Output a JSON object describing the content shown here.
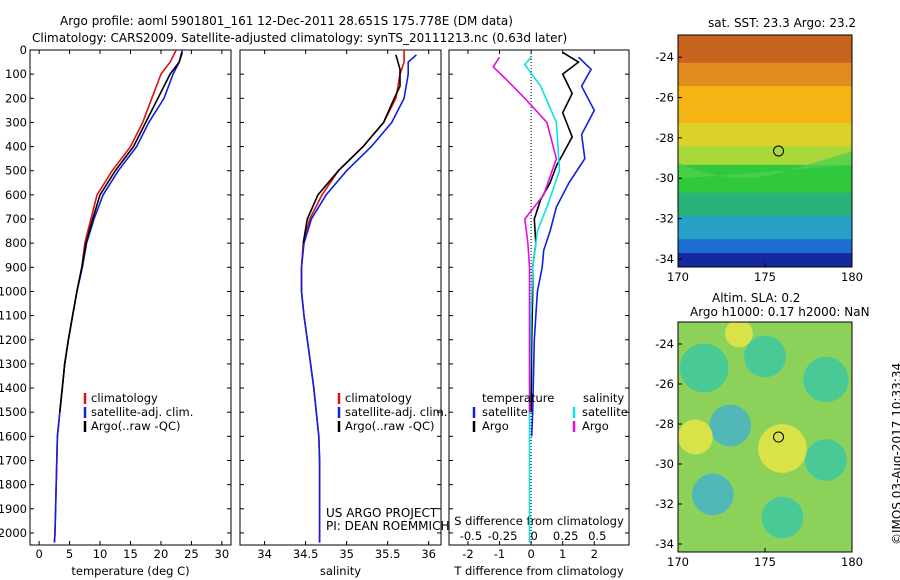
{
  "header": {
    "title": "Argo profile: aoml 5901801_161 12-Dec-2011 28.651S 175.778E (DM data)",
    "subtitle": "Climatology: CARS2009. Satellite-adjusted climatology: synTS_20111213.nc (0.63d later)"
  },
  "colors": {
    "climatology": "#e01010",
    "satellite": "#1020e0",
    "argo": "#000000",
    "cyan": "#10e0e0",
    "magenta": "#e010e0"
  },
  "legend_main": {
    "climatology": "climatology",
    "satellite": "satellite-adj. clim.",
    "argo": "Argo(..raw -QC)"
  },
  "legend_diff": {
    "temp_head": "temperature",
    "sal_head": "salinity",
    "satellite": "satellite",
    "argo": "Argo"
  },
  "credits": {
    "project": "US ARGO PROJECT",
    "pi": "PI: DEAN ROEMMICH"
  },
  "footer": {
    "stamp": "©IMOS 03-Aug-2017 10:33:34"
  },
  "maps": {
    "sst": {
      "title": "sat. SST: 23.3 Argo: 23.2",
      "xticks": [
        "170",
        "175",
        "180"
      ],
      "yticks": [
        "-24",
        "-26",
        "-28",
        "-30",
        "-32",
        "-34"
      ]
    },
    "sla": {
      "title1": "Altim. SLA: 0.2",
      "title2": "Argo h1000: 0.17 h2000: NaN",
      "xticks": [
        "170",
        "175",
        "180"
      ],
      "yticks": [
        "-24",
        "-26",
        "-28",
        "-30",
        "-32",
        "-34"
      ]
    }
  },
  "chart_data": [
    {
      "type": "line",
      "name": "temperature",
      "xlabel": "temperature (deg C)",
      "ylabel": "",
      "xlim": [
        -1.5,
        31.5
      ],
      "ylim": [
        2050,
        0
      ],
      "xticks": [
        0,
        5,
        10,
        15,
        20,
        25,
        30
      ],
      "yticks": [
        0,
        100,
        200,
        300,
        400,
        500,
        600,
        700,
        800,
        900,
        1000,
        1100,
        1200,
        1300,
        1400,
        1500,
        1600,
        1700,
        1800,
        1900,
        2000
      ],
      "series": [
        {
          "name": "climatology",
          "color": "#e01010",
          "points": [
            [
              22.5,
              0
            ],
            [
              21.5,
              50
            ],
            [
              20,
              100
            ],
            [
              18.5,
              200
            ],
            [
              17,
              300
            ],
            [
              15,
              400
            ],
            [
              12,
              500
            ],
            [
              9.5,
              600
            ],
            [
              8.5,
              700
            ],
            [
              7.5,
              800
            ],
            [
              7,
              900
            ],
            [
              6.2,
              1000
            ],
            [
              5.5,
              1100
            ],
            [
              4.8,
              1200
            ],
            [
              4.2,
              1300
            ],
            [
              3.8,
              1400
            ],
            [
              3.4,
              1500
            ],
            [
              3,
              1600
            ],
            [
              2.8,
              1800
            ],
            [
              2.6,
              2000
            ],
            [
              2.5,
              2040
            ]
          ]
        },
        {
          "name": "satellite-adj. clim.",
          "color": "#1020e0",
          "points": [
            [
              23.5,
              0
            ],
            [
              23,
              50
            ],
            [
              22,
              100
            ],
            [
              20.5,
              200
            ],
            [
              18,
              300
            ],
            [
              16,
              400
            ],
            [
              13,
              500
            ],
            [
              10.5,
              600
            ],
            [
              9,
              700
            ],
            [
              7.8,
              800
            ],
            [
              7.1,
              900
            ],
            [
              6.2,
              1000
            ],
            [
              5.5,
              1100
            ],
            [
              4.8,
              1200
            ],
            [
              4.2,
              1300
            ],
            [
              3.8,
              1400
            ],
            [
              3.4,
              1500
            ],
            [
              3,
              1600
            ],
            [
              2.8,
              1800
            ],
            [
              2.6,
              2000
            ],
            [
              2.5,
              2040
            ]
          ]
        },
        {
          "name": "Argo(..raw -QC)",
          "color": "#000000",
          "points": [
            [
              23.5,
              10
            ],
            [
              23,
              50
            ],
            [
              21.5,
              100
            ],
            [
              19.5,
              200
            ],
            [
              17.5,
              300
            ],
            [
              15.5,
              400
            ],
            [
              12.5,
              500
            ],
            [
              10,
              600
            ],
            [
              8.8,
              700
            ],
            [
              7.7,
              800
            ],
            [
              7,
              900
            ],
            [
              6.2,
              1000
            ],
            [
              5.5,
              1100
            ],
            [
              4.8,
              1200
            ],
            [
              4.2,
              1300
            ],
            [
              3.8,
              1400
            ],
            [
              3.4,
              1500
            ]
          ]
        }
      ]
    },
    {
      "type": "line",
      "name": "salinity",
      "xlabel": "salinity",
      "ylabel": "",
      "xlim": [
        33.7,
        36.15
      ],
      "ylim": [
        2050,
        0
      ],
      "xticks": [
        34,
        34.5,
        35,
        35.5,
        36
      ],
      "series": [
        {
          "name": "climatology",
          "color": "#e01010",
          "points": [
            [
              35.7,
              0
            ],
            [
              35.7,
              50
            ],
            [
              35.65,
              100
            ],
            [
              35.6,
              200
            ],
            [
              35.45,
              300
            ],
            [
              35.2,
              400
            ],
            [
              34.9,
              500
            ],
            [
              34.7,
              600
            ],
            [
              34.55,
              700
            ],
            [
              34.47,
              800
            ],
            [
              34.45,
              900
            ],
            [
              34.45,
              1000
            ],
            [
              34.48,
              1100
            ],
            [
              34.52,
              1200
            ],
            [
              34.56,
              1300
            ],
            [
              34.6,
              1400
            ],
            [
              34.63,
              1500
            ],
            [
              34.66,
              1600
            ],
            [
              34.67,
              1700
            ],
            [
              34.67,
              1800
            ],
            [
              34.67,
              2000
            ],
            [
              34.67,
              2040
            ]
          ]
        },
        {
          "name": "satellite-adj. clim.",
          "color": "#1020e0",
          "points": [
            [
              35.85,
              20
            ],
            [
              35.75,
              50
            ],
            [
              35.75,
              100
            ],
            [
              35.7,
              200
            ],
            [
              35.55,
              300
            ],
            [
              35.3,
              400
            ],
            [
              35,
              500
            ],
            [
              34.75,
              600
            ],
            [
              34.57,
              700
            ],
            [
              34.48,
              800
            ],
            [
              34.45,
              900
            ],
            [
              34.45,
              1000
            ],
            [
              34.48,
              1100
            ],
            [
              34.52,
              1200
            ],
            [
              34.56,
              1300
            ],
            [
              34.6,
              1400
            ],
            [
              34.63,
              1500
            ],
            [
              34.66,
              1600
            ],
            [
              34.67,
              1700
            ],
            [
              34.67,
              1800
            ],
            [
              34.67,
              2000
            ],
            [
              34.67,
              2040
            ]
          ]
        },
        {
          "name": "Argo(..raw -QC)",
          "color": "#000000",
          "points": [
            [
              35.6,
              20
            ],
            [
              35.65,
              80
            ],
            [
              35.65,
              150
            ],
            [
              35.58,
              200
            ],
            [
              35.45,
              300
            ],
            [
              35.2,
              400
            ],
            [
              34.9,
              500
            ],
            [
              34.65,
              600
            ],
            [
              34.52,
              700
            ],
            [
              34.47,
              800
            ]
          ]
        }
      ]
    },
    {
      "type": "line",
      "name": "difference",
      "xlabel": "T difference from climatology",
      "xlabel2": "S difference from climatology",
      "xlim": [
        -2.6,
        3.1
      ],
      "ylim": [
        2050,
        0
      ],
      "xticks": [
        -2,
        -1,
        0,
        1,
        2
      ],
      "s_ticks": [
        "-0.5",
        "-0.25",
        "0",
        "0.25",
        "0.5"
      ],
      "s_tick_positions": [
        -2,
        -1,
        0,
        1,
        2
      ],
      "series": [
        {
          "name": "temperature satellite",
          "color": "#1020e0",
          "points": [
            [
              1.5,
              30
            ],
            [
              1.9,
              80
            ],
            [
              1.6,
              150
            ],
            [
              2,
              250
            ],
            [
              1.6,
              350
            ],
            [
              1.7,
              450
            ],
            [
              1.2,
              550
            ],
            [
              0.8,
              650
            ],
            [
              0.6,
              750
            ],
            [
              0.4,
              830
            ],
            [
              0.35,
              900
            ],
            [
              0.2,
              1000
            ],
            [
              0.1,
              1200
            ],
            [
              0.05,
              1500
            ],
            [
              0.02,
              1600
            ]
          ]
        },
        {
          "name": "temperature Argo",
          "color": "#000000",
          "points": [
            [
              1,
              10
            ],
            [
              1.5,
              50
            ],
            [
              1,
              100
            ],
            [
              1.3,
              180
            ],
            [
              1,
              260
            ],
            [
              1.3,
              360
            ],
            [
              0.8,
              480
            ],
            [
              0.6,
              550
            ],
            [
              0.3,
              620
            ],
            [
              0.1,
              700
            ],
            [
              0.15,
              800
            ],
            [
              0.05,
              900
            ],
            [
              0.05,
              1000
            ],
            [
              0.02,
              1200
            ],
            [
              0,
              1500
            ]
          ]
        },
        {
          "name": "salinity satellite",
          "color": "#10e0e0",
          "points": [
            [
              0,
              30
            ],
            [
              -0.2,
              60
            ],
            [
              0.3,
              150
            ],
            [
              0.8,
              300
            ],
            [
              0.9,
              500
            ],
            [
              0.5,
              650
            ],
            [
              0.2,
              750
            ],
            [
              0.05,
              900
            ],
            [
              0,
              1100
            ],
            [
              -0.05,
              1500
            ],
            [
              -0.05,
              2040
            ]
          ]
        },
        {
          "name": "salinity Argo",
          "color": "#e010e0",
          "points": [
            [
              -1,
              30
            ],
            [
              -1.2,
              70
            ],
            [
              -0.8,
              120
            ],
            [
              -0.2,
              200
            ],
            [
              0.5,
              300
            ],
            [
              0.8,
              450
            ],
            [
              0.4,
              600
            ],
            [
              -0.2,
              700
            ],
            [
              -0.1,
              800
            ],
            [
              -0.05,
              900
            ],
            [
              -0.05,
              1100
            ],
            [
              -0.05,
              1500
            ]
          ]
        }
      ]
    }
  ]
}
